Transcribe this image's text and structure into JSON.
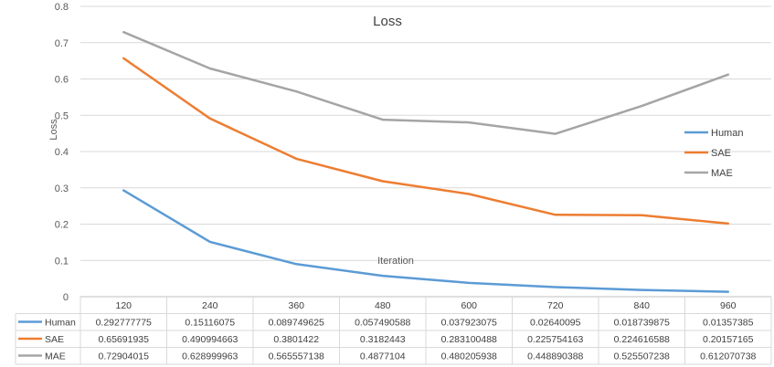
{
  "chart_data": {
    "type": "line",
    "title": "Loss",
    "xlabel": "Iteration",
    "ylabel": "Loss",
    "ylim": [
      0,
      0.8
    ],
    "yticks": [
      "0",
      "0.1",
      "0.2",
      "0.3",
      "0.4",
      "0.5",
      "0.6",
      "0.7",
      "0.8"
    ],
    "grid": "horizontal",
    "legend_position": "right",
    "categories": [
      "120",
      "240",
      "360",
      "480",
      "600",
      "720",
      "840",
      "960"
    ],
    "series": [
      {
        "name": "Human",
        "color": "#5b9bd5",
        "values": [
          0.292777775,
          0.15116075,
          0.089749625,
          0.057490588,
          0.037923075,
          0.02640095,
          0.018739875,
          0.01357385
        ],
        "labels": [
          "0.292777775",
          "0.15116075",
          "0.089749625",
          "0.057490588",
          "0.037923075",
          "0.02640095",
          "0.018739875",
          "0.01357385"
        ]
      },
      {
        "name": "SAE",
        "color": "#ed7d31",
        "values": [
          0.65691935,
          0.490994663,
          0.3801422,
          0.3182443,
          0.283100488,
          0.225754163,
          0.224616588,
          0.20157165
        ],
        "labels": [
          "0.65691935",
          "0.490994663",
          "0.3801422",
          "0.3182443",
          "0.283100488",
          "0.225754163",
          "0.224616588",
          "0.20157165"
        ]
      },
      {
        "name": "MAE",
        "color": "#a5a5a5",
        "values": [
          0.72904015,
          0.628999963,
          0.565557138,
          0.4877104,
          0.480205938,
          0.448890388,
          0.525507238,
          0.612070738
        ],
        "labels": [
          "0.72904015",
          "0.628999963",
          "0.565557138",
          "0.4877104",
          "0.480205938",
          "0.448890388",
          "0.525507238",
          "0.612070738"
        ]
      }
    ]
  }
}
